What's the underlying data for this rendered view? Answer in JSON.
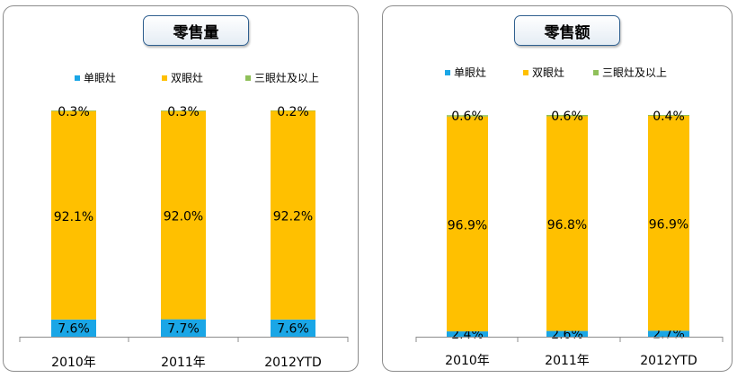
{
  "chart_data": [
    {
      "type": "bar",
      "stacked": true,
      "title": "零售量",
      "categories": [
        "2010年",
        "2011年",
        "2012YTD"
      ],
      "series": [
        {
          "name": "单眼灶",
          "color": "#1aa6e6",
          "values": [
            7.6,
            7.7,
            7.6
          ],
          "labels": [
            "7.6%",
            "7.7%",
            "7.6%"
          ]
        },
        {
          "name": "双眼灶",
          "color": "#ffc000",
          "values": [
            92.1,
            92.0,
            92.2
          ],
          "labels": [
            "92.1%",
            "92.0%",
            "92.2%"
          ]
        },
        {
          "name": "三眼灶及以上",
          "color": "#8fc05a",
          "values": [
            0.3,
            0.3,
            0.2
          ],
          "labels": [
            "0.3%",
            "0.3%",
            "0.2%"
          ]
        }
      ],
      "ylim": [
        0,
        100
      ],
      "grid": false,
      "legend": "top"
    },
    {
      "type": "bar",
      "stacked": true,
      "title": "零售额",
      "categories": [
        "2010年",
        "2011年",
        "2012YTD"
      ],
      "series": [
        {
          "name": "单眼灶",
          "color": "#1aa6e6",
          "values": [
            2.4,
            2.6,
            2.7
          ],
          "labels": [
            "2.4%",
            "2.6%",
            "2.7%"
          ]
        },
        {
          "name": "双眼灶",
          "color": "#ffc000",
          "values": [
            96.9,
            96.8,
            96.9
          ],
          "labels": [
            "96.9%",
            "96.8%",
            "96.9%"
          ]
        },
        {
          "name": "三眼灶及以上",
          "color": "#8fc05a",
          "values": [
            0.6,
            0.6,
            0.4
          ],
          "labels": [
            "0.6%",
            "0.6%",
            "0.4%"
          ]
        }
      ],
      "ylim": [
        0,
        100
      ],
      "grid": false,
      "legend": "top"
    }
  ]
}
